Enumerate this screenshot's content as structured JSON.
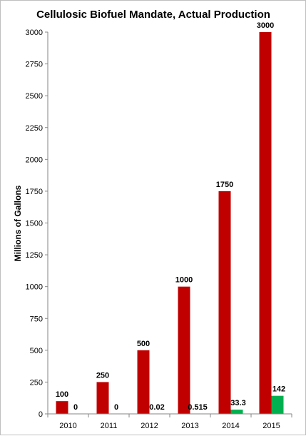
{
  "chart_data": {
    "type": "bar",
    "title": "Cellulosic Biofuel Mandate, Actual Production",
    "xlabel": "",
    "ylabel": "Millions of Gallons",
    "categories": [
      "2010",
      "2011",
      "2012",
      "2013",
      "2014",
      "2015"
    ],
    "ylim": [
      0,
      3000
    ],
    "yticks": [
      0,
      250,
      500,
      750,
      1000,
      1250,
      1500,
      1750,
      2000,
      2250,
      2500,
      2750,
      3000
    ],
    "grid": false,
    "legend": "none",
    "series": [
      {
        "values": [
          100,
          250,
          500,
          1000,
          1750,
          3000
        ],
        "labels": [
          "100",
          "250",
          "500",
          "1000",
          "1750",
          "3000"
        ],
        "color": "#C00000"
      },
      {
        "values": [
          0,
          0,
          0.02,
          0.515,
          33.3,
          142
        ],
        "labels": [
          "0",
          "0",
          "0.02",
          "0.515",
          "33.3",
          "142"
        ],
        "color": "#00B050"
      }
    ]
  }
}
